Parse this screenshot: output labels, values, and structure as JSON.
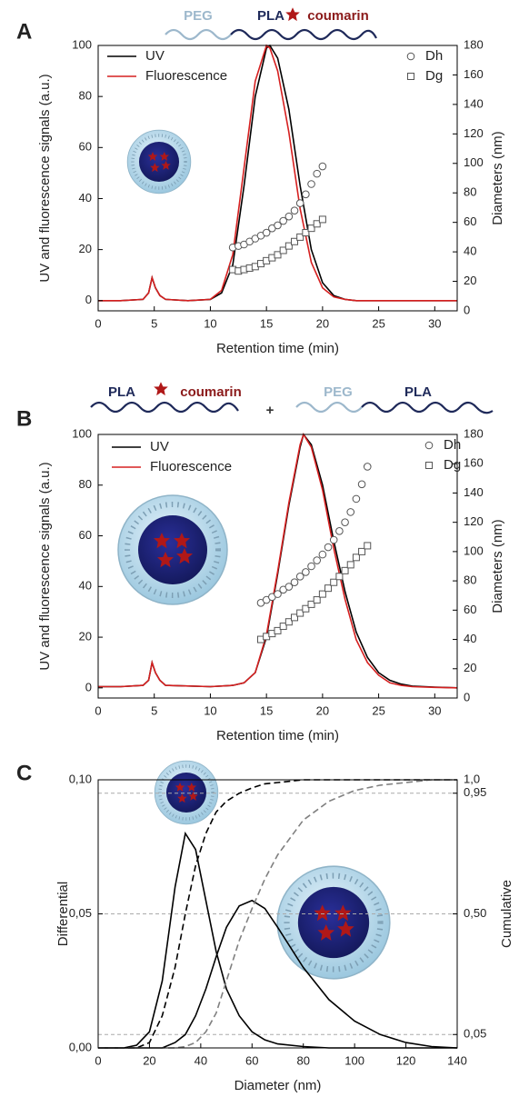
{
  "chart_data": [
    {
      "type": "line",
      "panel": "A",
      "annotations": [
        "PEG",
        "PLA",
        "coumarin"
      ],
      "xlabel": "Retention time (min)",
      "ylabel": "UV and fluorescence signals (a.u.)",
      "y2label": "Diameters (nm)",
      "xlim": [
        0,
        32
      ],
      "xticks": [
        0,
        5,
        10,
        15,
        20,
        25,
        30
      ],
      "ylim": [
        -4,
        100
      ],
      "yticks": [
        0,
        20,
        40,
        60,
        80,
        100
      ],
      "y2lim": [
        0,
        180
      ],
      "y2ticks": [
        0,
        20,
        40,
        60,
        80,
        100,
        120,
        140,
        160,
        180
      ],
      "grid": false,
      "series": [
        {
          "name": "UV",
          "color": "#000000",
          "mode": "line",
          "x": [
            0,
            2,
            4,
            4.5,
            4.8,
            5.1,
            5.5,
            6,
            8,
            10,
            11,
            12,
            13,
            14,
            15,
            15.3,
            16,
            17,
            18,
            19,
            20,
            21,
            22,
            23,
            24,
            27,
            32
          ],
          "values": [
            0,
            0,
            0.5,
            3,
            9,
            5,
            2,
            0.5,
            0,
            0.5,
            3,
            14,
            45,
            80,
            99,
            100,
            95,
            75,
            45,
            20,
            7,
            2,
            0.5,
            0,
            0,
            0,
            0
          ]
        },
        {
          "name": "Fluorescence",
          "color": "#d62020",
          "mode": "line",
          "x": [
            0,
            2,
            4,
            4.5,
            4.8,
            5.1,
            5.5,
            6,
            8,
            10,
            11,
            12,
            13,
            14,
            15,
            15.3,
            16,
            17,
            18,
            19,
            20,
            21,
            22,
            23,
            24,
            27,
            32
          ],
          "values": [
            0,
            0,
            0.5,
            3,
            9,
            5,
            2,
            0.5,
            0,
            0.5,
            4,
            18,
            52,
            86,
            100,
            99,
            90,
            66,
            36,
            15,
            5,
            1.5,
            0.5,
            0,
            0,
            0,
            0
          ]
        },
        {
          "name": "Dh",
          "color": "#555555",
          "mode": "scatter",
          "marker": "circle",
          "axis": "y2",
          "x": [
            12,
            12.5,
            13,
            13.5,
            14,
            14.5,
            15,
            15.5,
            16,
            16.5,
            17,
            17.5,
            18,
            18.5,
            19,
            19.5,
            20
          ],
          "values": [
            43,
            44,
            45,
            47,
            49,
            51,
            53,
            56,
            58,
            61,
            64,
            68,
            73,
            79,
            86,
            93,
            98
          ]
        },
        {
          "name": "Dg",
          "color": "#555555",
          "mode": "scatter",
          "marker": "square",
          "axis": "y2",
          "x": [
            12,
            12.5,
            13,
            13.5,
            14,
            14.5,
            15,
            15.5,
            16,
            16.5,
            17,
            17.5,
            18,
            18.5,
            19,
            19.5,
            20
          ],
          "values": [
            28,
            27,
            28,
            29,
            30,
            32,
            34,
            36,
            38,
            41,
            44,
            47,
            50,
            53,
            56,
            59,
            62
          ]
        }
      ]
    },
    {
      "type": "line",
      "panel": "B",
      "annotations": [
        "PLA",
        "coumarin",
        "+",
        "PEG",
        "PLA"
      ],
      "xlabel": "Retention time (min)",
      "ylabel": "UV and fluorescence signals (a.u.)",
      "y2label": "Diameters (nm)",
      "xlim": [
        0,
        32
      ],
      "xticks": [
        0,
        5,
        10,
        15,
        20,
        25,
        30
      ],
      "ylim": [
        -4,
        100
      ],
      "yticks": [
        0,
        20,
        40,
        60,
        80,
        100
      ],
      "y2lim": [
        0,
        180
      ],
      "y2ticks": [
        0,
        20,
        40,
        60,
        80,
        100,
        120,
        140,
        160,
        180
      ],
      "grid": false,
      "series": [
        {
          "name": "UV",
          "color": "#000000",
          "mode": "line",
          "x": [
            0,
            2,
            4,
            4.5,
            4.8,
            5.1,
            5.5,
            6,
            10,
            12,
            13,
            14,
            15,
            16,
            17,
            18,
            18.3,
            19,
            20,
            21,
            22,
            23,
            24,
            25,
            26,
            27,
            28,
            30,
            32
          ],
          "values": [
            0.5,
            0.5,
            1,
            3,
            10,
            6,
            3,
            1,
            0.5,
            1,
            2,
            6,
            20,
            45,
            72,
            95,
            100,
            96,
            80,
            58,
            38,
            22,
            12,
            6,
            3,
            1.5,
            0.7,
            0.3,
            0
          ]
        },
        {
          "name": "Fluorescence",
          "color": "#d62020",
          "mode": "line",
          "x": [
            0,
            2,
            4,
            4.5,
            4.8,
            5.1,
            5.5,
            6,
            10,
            12,
            13,
            14,
            15,
            16,
            17,
            18,
            18.3,
            19,
            20,
            21,
            22,
            23,
            24,
            25,
            26,
            27,
            28,
            30,
            32
          ],
          "values": [
            0.5,
            0.5,
            1,
            3,
            10,
            6,
            3,
            1,
            0.5,
            1,
            2,
            6,
            21,
            46,
            73,
            96,
            100,
            95,
            78,
            55,
            35,
            19,
            10,
            5,
            2,
            1,
            0.5,
            0.2,
            0
          ]
        },
        {
          "name": "Dh",
          "color": "#555555",
          "mode": "scatter",
          "marker": "circle",
          "axis": "y2",
          "x": [
            14.5,
            15,
            15.5,
            16,
            16.5,
            17,
            17.5,
            18,
            18.5,
            19,
            19.5,
            20,
            20.5,
            21,
            21.5,
            22,
            22.5,
            23,
            23.5,
            24
          ],
          "values": [
            65,
            67,
            69,
            71,
            74,
            76,
            79,
            83,
            86,
            90,
            94,
            98,
            103,
            108,
            114,
            120,
            127,
            136,
            146,
            158
          ]
        },
        {
          "name": "Dg",
          "color": "#555555",
          "mode": "scatter",
          "marker": "square",
          "axis": "y2",
          "x": [
            14.5,
            15,
            15.5,
            16,
            16.5,
            17,
            17.5,
            18,
            18.5,
            19,
            19.5,
            20,
            20.5,
            21,
            21.5,
            22,
            22.5,
            23,
            23.5,
            24
          ],
          "values": [
            40,
            42,
            44,
            46,
            49,
            52,
            55,
            58,
            61,
            64,
            67,
            71,
            75,
            79,
            83,
            87,
            91,
            96,
            100,
            104
          ]
        }
      ]
    },
    {
      "type": "line",
      "panel": "C",
      "xlabel": "Diameter (nm)",
      "ylabel": "Differential",
      "y2label": "Cumulative",
      "xlim": [
        0,
        140
      ],
      "xticks": [
        0,
        20,
        40,
        60,
        80,
        100,
        120,
        140
      ],
      "ylim": [
        0,
        0.1
      ],
      "yticks": [
        {
          "value": 0,
          "label": "0,00"
        },
        {
          "value": 0.05,
          "label": "0,05"
        },
        {
          "value": 0.1,
          "label": "0,10"
        }
      ],
      "y2lim": [
        0,
        1
      ],
      "y2ticks": [
        {
          "value": 0.05,
          "label": "0,05"
        },
        {
          "value": 0.5,
          "label": "0,50"
        },
        {
          "value": 0.95,
          "label": "0,95"
        },
        {
          "value": 1,
          "label": "1,0"
        }
      ],
      "grid": "y2",
      "series": [
        {
          "color": "#000000",
          "mode": "line",
          "x": [
            0,
            10,
            15,
            20,
            25,
            30,
            34,
            38,
            42,
            46,
            50,
            55,
            60,
            65,
            70,
            80,
            90,
            100,
            110,
            120,
            130,
            140
          ],
          "values": [
            0,
            0,
            0.001,
            0.006,
            0.025,
            0.06,
            0.08,
            0.074,
            0.055,
            0.036,
            0.022,
            0.012,
            0.006,
            0.003,
            0.0015,
            0.0005,
            0,
            0,
            0,
            0,
            0,
            0
          ]
        },
        {
          "color": "#000000",
          "mode": "line",
          "x": [
            0,
            10,
            15,
            20,
            25,
            30,
            34,
            38,
            42,
            46,
            50,
            55,
            60,
            65,
            70,
            80,
            90,
            100,
            110,
            120,
            130,
            140
          ],
          "values": [
            0,
            0,
            0,
            0,
            0,
            0.002,
            0.005,
            0.012,
            0.022,
            0.034,
            0.045,
            0.053,
            0.055,
            0.052,
            0.045,
            0.03,
            0.018,
            0.01,
            0.005,
            0.002,
            0.0005,
            0
          ]
        },
        {
          "color": "#000000",
          "mode": "line",
          "dash": true,
          "axis": "y2",
          "x": [
            0,
            10,
            15,
            20,
            25,
            30,
            34,
            38,
            42,
            46,
            50,
            55,
            60,
            65,
            70,
            80,
            90,
            100,
            110,
            120,
            130,
            140
          ],
          "values": [
            0,
            0,
            0,
            0.02,
            0.12,
            0.3,
            0.5,
            0.68,
            0.8,
            0.88,
            0.92,
            0.95,
            0.97,
            0.985,
            0.99,
            1,
            1,
            1,
            1,
            1,
            1,
            1
          ]
        },
        {
          "color": "#808080",
          "mode": "line",
          "dash": true,
          "axis": "y2",
          "x": [
            0,
            10,
            15,
            20,
            25,
            30,
            34,
            38,
            42,
            46,
            50,
            55,
            60,
            65,
            70,
            80,
            90,
            100,
            110,
            120,
            130,
            140
          ],
          "values": [
            0,
            0,
            0,
            0,
            0,
            0,
            0.005,
            0.02,
            0.06,
            0.13,
            0.25,
            0.4,
            0.52,
            0.63,
            0.72,
            0.85,
            0.92,
            0.96,
            0.98,
            0.99,
            1,
            1
          ]
        }
      ]
    }
  ]
}
